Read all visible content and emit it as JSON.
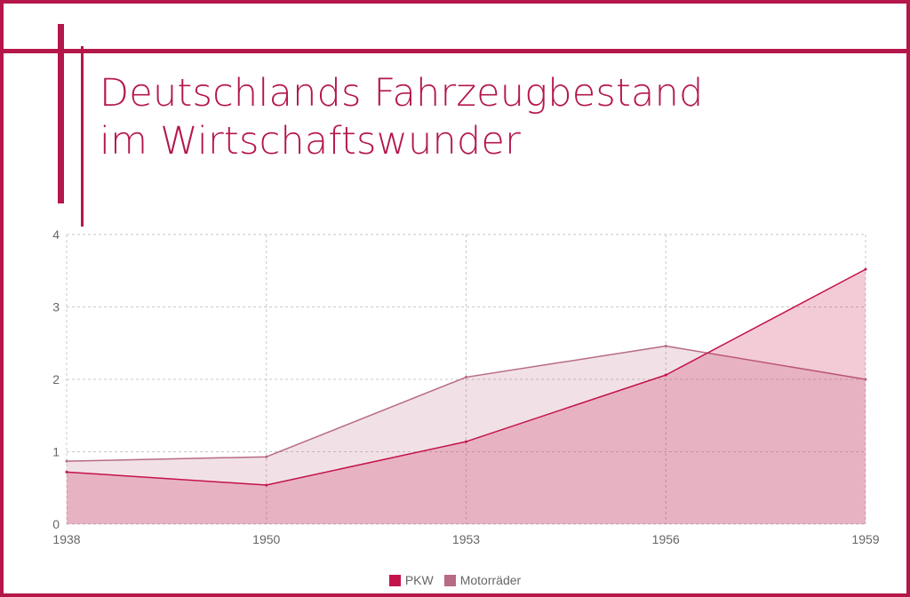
{
  "title_lines": [
    "Deutschlands Fahrzeugbestand",
    "im Wirtschaftswunder"
  ],
  "colors": {
    "accent": "#b5174a",
    "pkw": "#c4134a",
    "motorraeder": "#b86b82",
    "grid": "#c8c8c8",
    "tick_text": "#666666"
  },
  "chart_data": {
    "type": "area",
    "title": "Deutschlands Fahrzeugbestand im Wirtschaftswunder",
    "categories": [
      "1938",
      "1950",
      "1953",
      "1956",
      "1959"
    ],
    "series": [
      {
        "name": "PKW",
        "values": [
          0.72,
          0.54,
          1.14,
          2.06,
          3.52
        ]
      },
      {
        "name": "Motorräder",
        "values": [
          0.87,
          0.93,
          2.03,
          2.46,
          2.0
        ]
      }
    ],
    "yticks": [
      "0",
      "1",
      "2",
      "3",
      "4"
    ],
    "ylim": [
      0,
      4
    ],
    "xlabel": "",
    "ylabel": "",
    "grid": true,
    "legend": "bottom-center"
  }
}
